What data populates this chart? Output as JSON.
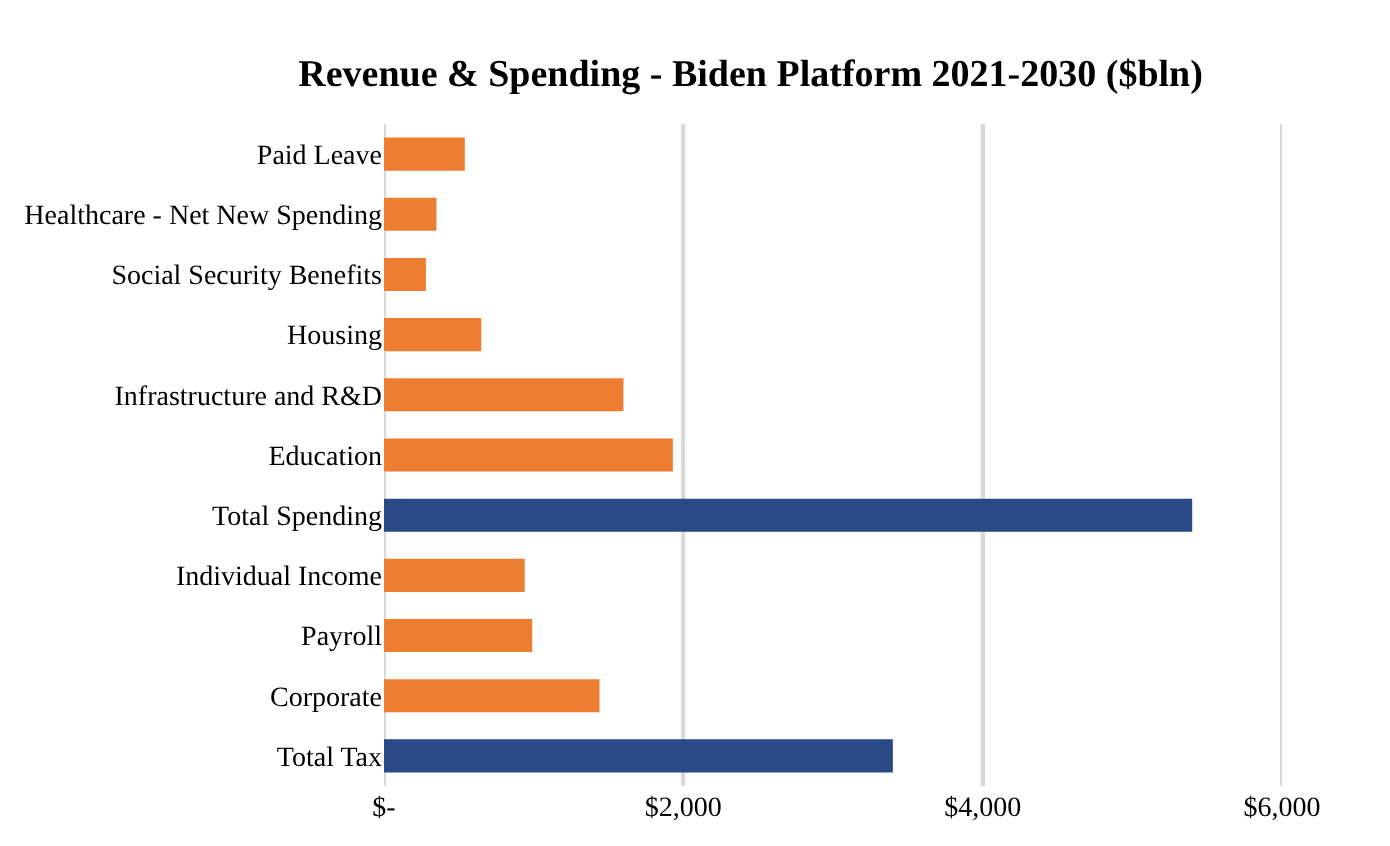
{
  "chart_data": {
    "type": "bar",
    "orientation": "horizontal",
    "title": "Revenue & Spending - Biden Platform 2021-2030 ($bln)",
    "categories": [
      "Paid Leave",
      "Healthcare - Net New Spending",
      "Social Security Benefits",
      "Housing",
      "Infrastructure and R&D",
      "Education",
      "Total Spending",
      "Individual Income",
      "Payroll",
      "Corporate",
      "Total Tax"
    ],
    "values": [
      540,
      350,
      280,
      650,
      1600,
      1930,
      5400,
      940,
      990,
      1440,
      3400
    ],
    "colors": [
      "#ed7d31",
      "#ed7d31",
      "#ed7d31",
      "#ed7d31",
      "#ed7d31",
      "#ed7d31",
      "#2a4a85",
      "#ed7d31",
      "#ed7d31",
      "#ed7d31",
      "#2a4a85"
    ],
    "xlim": [
      0,
      6000
    ],
    "xticks": [
      {
        "value": 0,
        "label": "$-"
      },
      {
        "value": 2000,
        "label": "$2,000"
      },
      {
        "value": 4000,
        "label": "$4,000"
      },
      {
        "value": 6000,
        "label": "$6,000"
      }
    ],
    "grid": "x"
  }
}
